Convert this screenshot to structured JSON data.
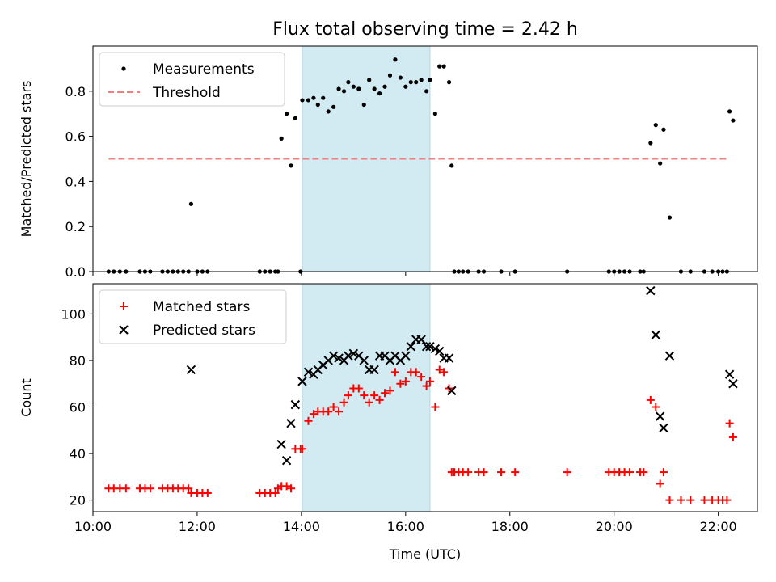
{
  "chart_data": [
    {
      "type": "scatter",
      "title": "Flux total observing time = 2.42 h",
      "ylabel": "Matched/Predicted stars",
      "xlim": [
        "10:00",
        "22:45"
      ],
      "ylim": [
        0,
        1.0
      ],
      "yticks": [
        "0.0",
        "0.2",
        "0.4",
        "0.6",
        "0.8"
      ],
      "legend_position": "upper-left",
      "highlight_span": {
        "start": "14:01",
        "end": "16:28",
        "color": "#add8e6"
      },
      "series": [
        {
          "name": "Measurements",
          "marker": "dot",
          "color": "#000000",
          "points": [
            [
              "10:18",
              0
            ],
            [
              "10:24",
              0
            ],
            [
              "10:31",
              0
            ],
            [
              "10:38",
              0
            ],
            [
              "10:54",
              0
            ],
            [
              "11:00",
              0
            ],
            [
              "11:06",
              0
            ],
            [
              "11:20",
              0
            ],
            [
              "11:26",
              0
            ],
            [
              "11:32",
              0
            ],
            [
              "11:38",
              0
            ],
            [
              "11:44",
              0
            ],
            [
              "11:50",
              0
            ],
            [
              "11:53",
              0.3
            ],
            [
              "12:00",
              0
            ],
            [
              "12:06",
              0
            ],
            [
              "12:12",
              0
            ],
            [
              "13:12",
              0
            ],
            [
              "13:18",
              0
            ],
            [
              "13:24",
              0
            ],
            [
              "13:30",
              0
            ],
            [
              "13:33",
              0
            ],
            [
              "13:37",
              0.59
            ],
            [
              "13:43",
              0.7
            ],
            [
              "13:48",
              0.47
            ],
            [
              "13:53",
              0.68
            ],
            [
              "13:59",
              0
            ],
            [
              "14:01",
              0.76
            ],
            [
              "14:08",
              0.76
            ],
            [
              "14:14",
              0.77
            ],
            [
              "14:19",
              0.74
            ],
            [
              "14:25",
              0.77
            ],
            [
              "14:31",
              0.71
            ],
            [
              "14:37",
              0.73
            ],
            [
              "14:43",
              0.81
            ],
            [
              "14:49",
              0.8
            ],
            [
              "14:54",
              0.84
            ],
            [
              "15:00",
              0.82
            ],
            [
              "15:06",
              0.81
            ],
            [
              "15:12",
              0.74
            ],
            [
              "15:18",
              0.85
            ],
            [
              "15:24",
              0.81
            ],
            [
              "15:30",
              0.79
            ],
            [
              "15:36",
              0.82
            ],
            [
              "15:42",
              0.87
            ],
            [
              "15:48",
              0.94
            ],
            [
              "15:54",
              0.86
            ],
            [
              "16:00",
              0.82
            ],
            [
              "16:06",
              0.84
            ],
            [
              "16:12",
              0.84
            ],
            [
              "16:18",
              0.85
            ],
            [
              "16:24",
              0.8
            ],
            [
              "16:28",
              0.85
            ],
            [
              "16:34",
              0.7
            ],
            [
              "16:39",
              0.91
            ],
            [
              "16:44",
              0.91
            ],
            [
              "16:50",
              0.84
            ],
            [
              "16:53",
              0.47
            ],
            [
              "16:56",
              0
            ],
            [
              "17:01",
              0
            ],
            [
              "17:06",
              0
            ],
            [
              "17:12",
              0
            ],
            [
              "17:24",
              0
            ],
            [
              "17:30",
              0
            ],
            [
              "17:50",
              0
            ],
            [
              "18:06",
              0
            ],
            [
              "19:06",
              0
            ],
            [
              "19:54",
              0
            ],
            [
              "20:00",
              0
            ],
            [
              "20:06",
              0
            ],
            [
              "20:12",
              0
            ],
            [
              "20:18",
              0
            ],
            [
              "20:30",
              0
            ],
            [
              "20:34",
              0
            ],
            [
              "20:42",
              0.57
            ],
            [
              "20:48",
              0.65
            ],
            [
              "20:53",
              0.48
            ],
            [
              "20:57",
              0.63
            ],
            [
              "21:04",
              0.24
            ],
            [
              "21:17",
              0
            ],
            [
              "21:28",
              0
            ],
            [
              "21:44",
              0
            ],
            [
              "21:53",
              0
            ],
            [
              "22:00",
              0
            ],
            [
              "22:05",
              0
            ],
            [
              "22:10",
              0
            ],
            [
              "22:13",
              0.71
            ],
            [
              "22:17",
              0.67
            ]
          ]
        },
        {
          "name": "Threshold",
          "marker": "dashed-line",
          "color": "#f08080",
          "points": [
            [
              "10:18",
              0.5
            ],
            [
              "22:10",
              0.5
            ]
          ]
        }
      ]
    },
    {
      "type": "scatter",
      "xlabel": "Time (UTC)",
      "ylabel": "Count",
      "xlim": [
        "10:00",
        "22:45"
      ],
      "ylim": [
        15,
        113
      ],
      "xticks": [
        "10:00",
        "12:00",
        "14:00",
        "16:00",
        "18:00",
        "20:00",
        "22:00"
      ],
      "yticks": [
        "20",
        "40",
        "60",
        "80",
        "100"
      ],
      "legend_position": "upper-left",
      "highlight_span": {
        "start": "14:01",
        "end": "16:28",
        "color": "#add8e6"
      },
      "series": [
        {
          "name": "Matched stars",
          "marker": "plus",
          "color": "#ff0000",
          "points": [
            [
              "10:18",
              25
            ],
            [
              "10:24",
              25
            ],
            [
              "10:31",
              25
            ],
            [
              "10:38",
              25
            ],
            [
              "10:54",
              25
            ],
            [
              "11:00",
              25
            ],
            [
              "11:06",
              25
            ],
            [
              "11:20",
              25
            ],
            [
              "11:26",
              25
            ],
            [
              "11:32",
              25
            ],
            [
              "11:38",
              25
            ],
            [
              "11:44",
              25
            ],
            [
              "11:50",
              25
            ],
            [
              "11:53",
              23
            ],
            [
              "12:00",
              23
            ],
            [
              "12:06",
              23
            ],
            [
              "12:12",
              23
            ],
            [
              "13:12",
              23
            ],
            [
              "13:18",
              23
            ],
            [
              "13:24",
              23
            ],
            [
              "13:30",
              23
            ],
            [
              "13:33",
              25
            ],
            [
              "13:37",
              26
            ],
            [
              "13:43",
              26
            ],
            [
              "13:48",
              25
            ],
            [
              "13:53",
              42
            ],
            [
              "13:59",
              42
            ],
            [
              "14:01",
              42
            ],
            [
              "14:08",
              54
            ],
            [
              "14:14",
              57
            ],
            [
              "14:19",
              58
            ],
            [
              "14:25",
              58
            ],
            [
              "14:31",
              58
            ],
            [
              "14:37",
              60
            ],
            [
              "14:43",
              58
            ],
            [
              "14:49",
              62
            ],
            [
              "14:54",
              65
            ],
            [
              "15:00",
              68
            ],
            [
              "15:06",
              68
            ],
            [
              "15:12",
              65
            ],
            [
              "15:18",
              62
            ],
            [
              "15:24",
              65
            ],
            [
              "15:30",
              63
            ],
            [
              "15:36",
              66
            ],
            [
              "15:42",
              67
            ],
            [
              "15:48",
              75
            ],
            [
              "15:54",
              70
            ],
            [
              "16:00",
              71
            ],
            [
              "16:06",
              75
            ],
            [
              "16:12",
              75
            ],
            [
              "16:18",
              73
            ],
            [
              "16:24",
              69
            ],
            [
              "16:28",
              71
            ],
            [
              "16:34",
              60
            ],
            [
              "16:39",
              76
            ],
            [
              "16:44",
              75
            ],
            [
              "16:50",
              68
            ],
            [
              "16:53",
              32
            ],
            [
              "16:56",
              32
            ],
            [
              "17:01",
              32
            ],
            [
              "17:06",
              32
            ],
            [
              "17:12",
              32
            ],
            [
              "17:24",
              32
            ],
            [
              "17:30",
              32
            ],
            [
              "17:50",
              32
            ],
            [
              "18:06",
              32
            ],
            [
              "19:06",
              32
            ],
            [
              "19:54",
              32
            ],
            [
              "20:00",
              32
            ],
            [
              "20:06",
              32
            ],
            [
              "20:12",
              32
            ],
            [
              "20:18",
              32
            ],
            [
              "20:30",
              32
            ],
            [
              "20:34",
              32
            ],
            [
              "20:42",
              63
            ],
            [
              "20:48",
              60
            ],
            [
              "20:53",
              27
            ],
            [
              "20:57",
              32
            ],
            [
              "21:04",
              20
            ],
            [
              "21:17",
              20
            ],
            [
              "21:28",
              20
            ],
            [
              "21:44",
              20
            ],
            [
              "21:53",
              20
            ],
            [
              "22:00",
              20
            ],
            [
              "22:05",
              20
            ],
            [
              "22:10",
              20
            ],
            [
              "22:13",
              53
            ],
            [
              "22:17",
              47
            ]
          ]
        },
        {
          "name": "Predicted stars",
          "marker": "x",
          "color": "#000000",
          "points": [
            [
              "11:53",
              76
            ],
            [
              "13:37",
              44
            ],
            [
              "13:43",
              37
            ],
            [
              "13:48",
              53
            ],
            [
              "13:53",
              61
            ],
            [
              "14:01",
              71
            ],
            [
              "14:08",
              75
            ],
            [
              "14:14",
              74
            ],
            [
              "14:19",
              76
            ],
            [
              "14:25",
              78
            ],
            [
              "14:31",
              80
            ],
            [
              "14:37",
              82
            ],
            [
              "14:43",
              81
            ],
            [
              "14:49",
              80
            ],
            [
              "14:54",
              82
            ],
            [
              "15:00",
              83
            ],
            [
              "15:06",
              82
            ],
            [
              "15:12",
              80
            ],
            [
              "15:18",
              76
            ],
            [
              "15:24",
              76
            ],
            [
              "15:30",
              82
            ],
            [
              "15:36",
              82
            ],
            [
              "15:42",
              80
            ],
            [
              "15:48",
              82
            ],
            [
              "15:54",
              80
            ],
            [
              "16:00",
              82
            ],
            [
              "16:06",
              86
            ],
            [
              "16:12",
              89
            ],
            [
              "16:18",
              89
            ],
            [
              "16:24",
              86
            ],
            [
              "16:28",
              86
            ],
            [
              "16:34",
              85
            ],
            [
              "16:39",
              84
            ],
            [
              "16:44",
              81
            ],
            [
              "16:50",
              81
            ],
            [
              "16:53",
              67
            ],
            [
              "20:42",
              110
            ],
            [
              "20:48",
              91
            ],
            [
              "20:53",
              56
            ],
            [
              "20:57",
              51
            ],
            [
              "21:04",
              82
            ],
            [
              "22:13",
              74
            ],
            [
              "22:17",
              70
            ]
          ]
        }
      ]
    }
  ]
}
